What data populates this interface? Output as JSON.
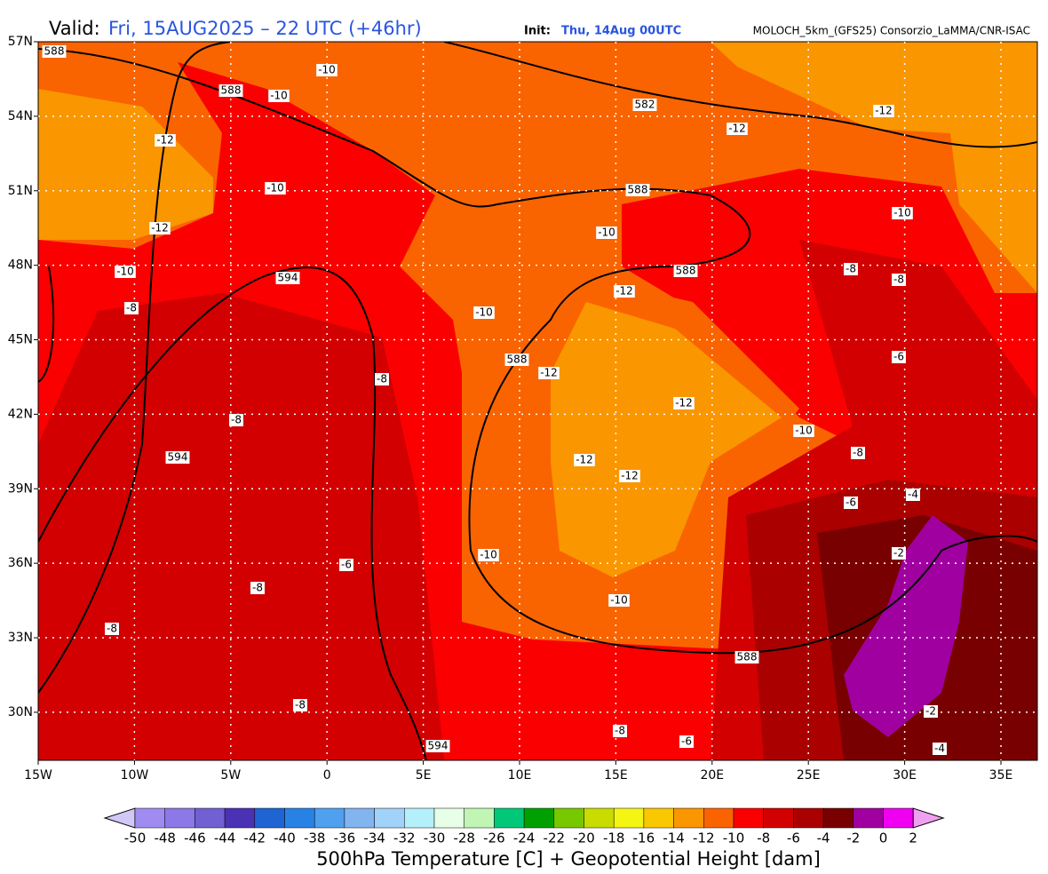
{
  "header": {
    "valid_label": "Valid:",
    "valid_time": "Fri, 15AUG2025 – 22 UTC (+46hr)",
    "init_label": "Init:",
    "init_time": "Thu, 14Aug 00UTC",
    "model": "MOLOCH_5km_(GFS25) Consorzio_LaMMA/CNR-ISAC"
  },
  "map": {
    "lat_ticks": [
      {
        "value": 57,
        "label": "57N"
      },
      {
        "value": 54,
        "label": "54N"
      },
      {
        "value": 51,
        "label": "51N"
      },
      {
        "value": 48,
        "label": "48N"
      },
      {
        "value": 45,
        "label": "45N"
      },
      {
        "value": 42,
        "label": "42N"
      },
      {
        "value": 39,
        "label": "39N"
      },
      {
        "value": 36,
        "label": "36N"
      },
      {
        "value": 33,
        "label": "33N"
      },
      {
        "value": 30,
        "label": "30N"
      }
    ],
    "lon_ticks": [
      {
        "value": -15,
        "label": "15W"
      },
      {
        "value": -10,
        "label": "10W"
      },
      {
        "value": -5,
        "label": "5W"
      },
      {
        "value": 0,
        "label": "0"
      },
      {
        "value": 5,
        "label": "5E"
      },
      {
        "value": 10,
        "label": "10E"
      },
      {
        "value": 15,
        "label": "15E"
      },
      {
        "value": 20,
        "label": "20E"
      },
      {
        "value": 25,
        "label": "25E"
      },
      {
        "value": 30,
        "label": "30E"
      },
      {
        "value": 35,
        "label": "35E"
      }
    ],
    "contour_labels": [
      "588",
      "588",
      "-10",
      "-10",
      "-12",
      "-10",
      "-12",
      "-10",
      "-8",
      "594",
      "582",
      "-12",
      "-12",
      "588",
      "-10",
      "-10",
      "588",
      "-8",
      "-8",
      "-12",
      "-10",
      "588",
      "-12",
      "-6",
      "-8",
      "-12",
      "-8",
      "-10",
      "594",
      "-8",
      "-12",
      "-12",
      "-4",
      "-6",
      "-10",
      "-2",
      "-6",
      "-8",
      "-10",
      "-8",
      "588",
      "-8",
      "-2",
      "594",
      "-8",
      "-6",
      "-4"
    ]
  },
  "colorbar": {
    "labels": [
      -50,
      -48,
      -46,
      -44,
      -42,
      -40,
      -38,
      -36,
      -34,
      -32,
      -30,
      -28,
      -26,
      -24,
      -22,
      -20,
      -18,
      -16,
      -14,
      -12,
      -10,
      -8,
      -6,
      -4,
      -2,
      0,
      2
    ],
    "colors": [
      "#a08cf0",
      "#8c78e6",
      "#7060d2",
      "#4b32b4",
      "#1e64d2",
      "#2882e6",
      "#50a0f0",
      "#82b4f0",
      "#a0d2fa",
      "#b4f0fa",
      "#e6ffe6",
      "#c0f5b4",
      "#00c878",
      "#00a000",
      "#78c800",
      "#c8dc00",
      "#f5f514",
      "#fac800",
      "#fa9600",
      "#fa6400",
      "#fa0000",
      "#d20000",
      "#aa0000",
      "#780000",
      "#a000a0",
      "#f000f0"
    ],
    "under_color": "#d2c8f8",
    "over_color": "#f0a0f0"
  },
  "footer": {
    "title": "500hPa Temperature [C] + Geopotential Height [dam]"
  }
}
